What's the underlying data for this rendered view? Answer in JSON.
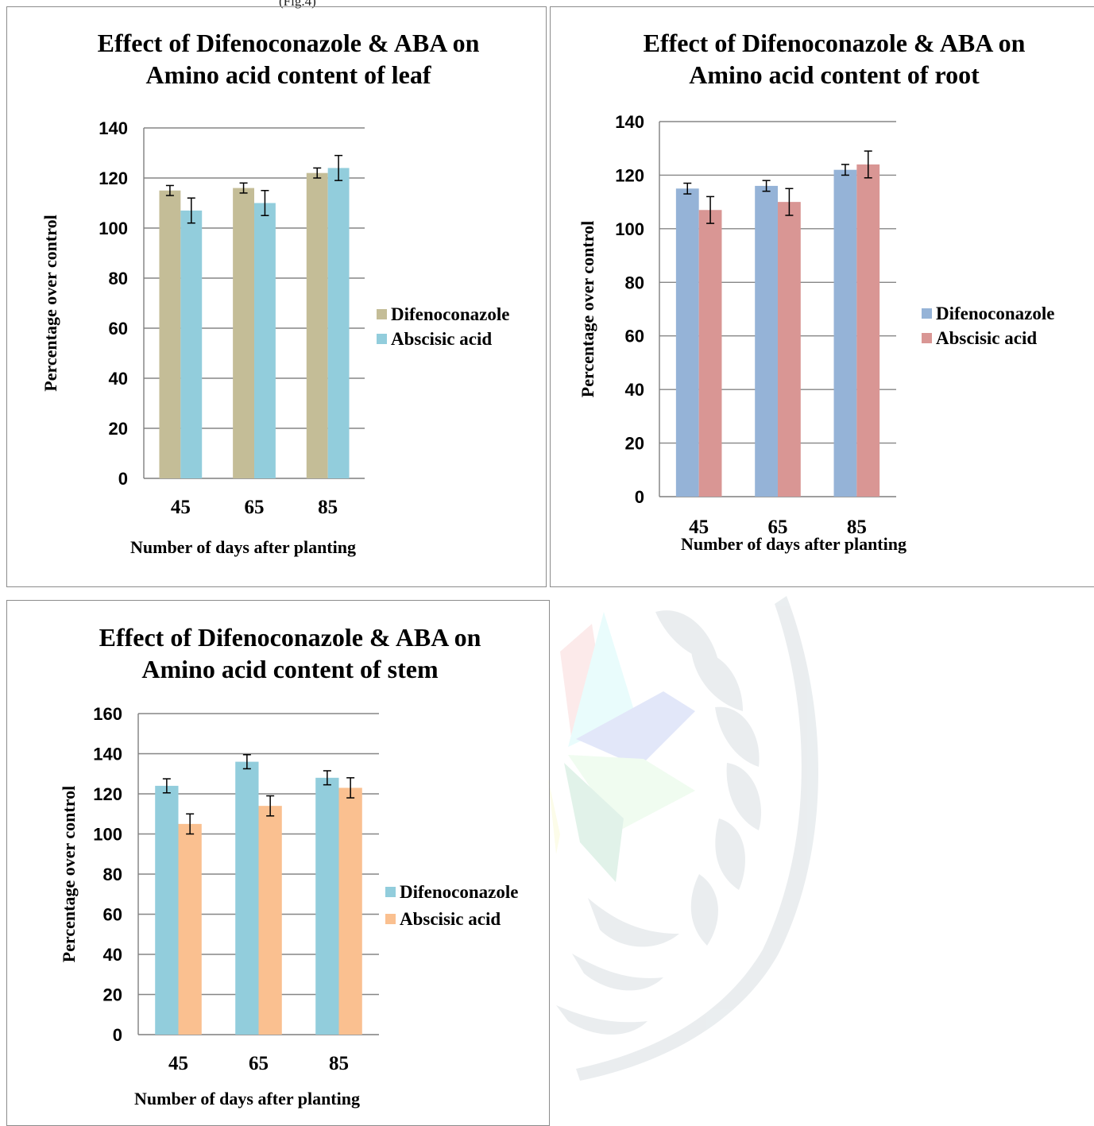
{
  "page": {
    "caption": "(Fig.4)"
  },
  "colors": {
    "tan": "#c4bd97",
    "light_blue": "#92cddc",
    "blue": "#95b3d7",
    "rose": "#d99694",
    "peach": "#fac090",
    "axis": "#7f7f7f",
    "grid": "#868686",
    "error_bar": "#000000"
  },
  "chart_data": [
    {
      "id": "leaf",
      "type": "bar",
      "title": [
        "Effect of Difenoconazole & ABA on",
        "Amino acid content of leaf"
      ],
      "xlabel": "Number of days after planting",
      "ylabel": "Percentage over control",
      "categories": [
        "45",
        "65",
        "85"
      ],
      "ylim": [
        0,
        140
      ],
      "yticks": [
        0,
        20,
        40,
        60,
        80,
        100,
        120,
        140
      ],
      "grid": true,
      "legend_position": "right",
      "series": [
        {
          "name": "Difenoconazole",
          "color": "#c4bd97",
          "values": [
            115,
            116,
            122
          ],
          "errors": [
            2,
            2,
            2
          ]
        },
        {
          "name": "Abscisic acid",
          "color": "#92cddc",
          "values": [
            107,
            110,
            124
          ],
          "errors": [
            5,
            5,
            5
          ]
        }
      ]
    },
    {
      "id": "root",
      "type": "bar",
      "title": [
        "Effect of Difenoconazole & ABA on",
        "Amino acid content of root"
      ],
      "xlabel": "Number of days after planting",
      "ylabel": "Percentage over control",
      "categories": [
        "45",
        "65",
        "85"
      ],
      "ylim": [
        0,
        140
      ],
      "yticks": [
        0,
        20,
        40,
        60,
        80,
        100,
        120,
        140
      ],
      "grid": true,
      "legend_position": "right",
      "series": [
        {
          "name": "Difenoconazole",
          "color": "#95b3d7",
          "values": [
            115,
            116,
            122
          ],
          "errors": [
            2,
            2,
            2
          ]
        },
        {
          "name": "Abscisic acid",
          "color": "#d99694",
          "values": [
            107,
            110,
            124
          ],
          "errors": [
            5,
            5,
            5
          ]
        }
      ]
    },
    {
      "id": "stem",
      "type": "bar",
      "title": [
        "Effect of Difenoconazole & ABA on",
        "Amino acid content of stem"
      ],
      "xlabel": "Number of days after planting",
      "ylabel": "Percentage over control",
      "categories": [
        "45",
        "65",
        "85"
      ],
      "ylim": [
        0,
        160
      ],
      "yticks": [
        0,
        20,
        40,
        60,
        80,
        100,
        120,
        140,
        160
      ],
      "grid": true,
      "legend_position": "right",
      "series": [
        {
          "name": "Difenoconazole",
          "color": "#92cddc",
          "values": [
            124,
            136,
            128
          ],
          "errors": [
            3.5,
            3.5,
            3.5
          ]
        },
        {
          "name": "Abscisic acid",
          "color": "#fac090",
          "values": [
            105,
            114,
            123
          ],
          "errors": [
            5,
            5,
            5
          ]
        }
      ]
    }
  ]
}
